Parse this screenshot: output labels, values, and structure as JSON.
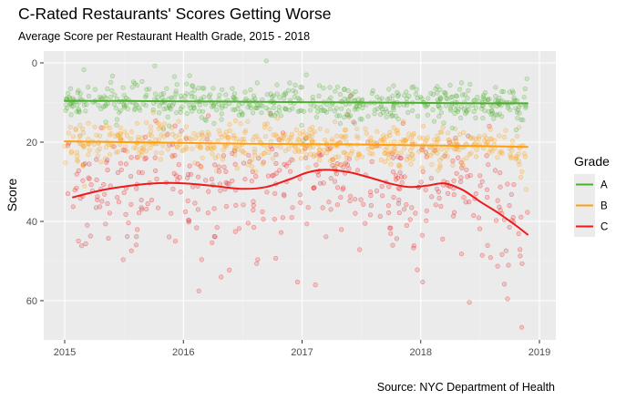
{
  "title": "C-Rated Restaurants' Scores Getting Worse",
  "subtitle": "Average Score per Restaurant Health Grade, 2015 - 2018",
  "caption": "Source: NYC Department of Health",
  "colors": {
    "panel": "#ebebeb",
    "grid_major": "#ffffff",
    "grid_minor": "#f4f4f4",
    "A": "#4daf2f",
    "B": "#ff9f10",
    "C": "#ee1b1b"
  },
  "chart_data": {
    "type": "scatter",
    "xlabel": "",
    "ylabel": "Score",
    "xlim": [
      2014.82,
      2019.13
    ],
    "ylim": [
      0,
      70
    ],
    "y_reversed": true,
    "x_ticks": [
      2015,
      2016,
      2017,
      2018,
      2019
    ],
    "y_ticks": [
      0,
      20,
      40,
      60
    ],
    "grid": true,
    "legend": {
      "title": "Grade",
      "position": "right",
      "entries": [
        "A",
        "B",
        "C"
      ]
    },
    "x_range": [
      2015.0,
      2018.9
    ],
    "series": [
      {
        "name": "A",
        "points_description": "daily restaurant scores, dense band",
        "scatter_center": 10,
        "scatter_spread": 3.5,
        "scatter_count": 560,
        "trend": [
          [
            2015.0,
            9.6
          ],
          [
            2015.5,
            9.6
          ],
          [
            2016.0,
            9.7
          ],
          [
            2016.5,
            9.8
          ],
          [
            2017.0,
            9.9
          ],
          [
            2017.5,
            10.0
          ],
          [
            2018.0,
            10.1
          ],
          [
            2018.5,
            10.2
          ],
          [
            2018.9,
            10.2
          ]
        ]
      },
      {
        "name": "B",
        "points_description": "daily restaurant scores, band",
        "scatter_center": 20,
        "scatter_spread": 4,
        "scatter_count": 560,
        "trend": [
          [
            2015.0,
            19.8
          ],
          [
            2015.5,
            20.0
          ],
          [
            2016.0,
            20.2
          ],
          [
            2016.5,
            20.4
          ],
          [
            2017.0,
            20.5
          ],
          [
            2017.5,
            20.6
          ],
          [
            2018.0,
            20.8
          ],
          [
            2018.5,
            21.0
          ],
          [
            2018.9,
            21.2
          ]
        ]
      },
      {
        "name": "C",
        "points_description": "daily restaurant scores, wide spread",
        "scatter_center": 32,
        "scatter_spread": 12,
        "scatter_count": 420,
        "trend": [
          [
            2015.07,
            33.9
          ],
          [
            2015.3,
            32.2
          ],
          [
            2015.5,
            31.2
          ],
          [
            2015.7,
            30.5
          ],
          [
            2015.9,
            30.3
          ],
          [
            2016.1,
            30.6
          ],
          [
            2016.3,
            31.2
          ],
          [
            2016.5,
            31.8
          ],
          [
            2016.7,
            31.3
          ],
          [
            2016.9,
            29.3
          ],
          [
            2017.05,
            27.6
          ],
          [
            2017.2,
            27.0
          ],
          [
            2017.4,
            27.6
          ],
          [
            2017.6,
            29.2
          ],
          [
            2017.75,
            30.5
          ],
          [
            2017.9,
            31.3
          ],
          [
            2018.05,
            31.0
          ],
          [
            2018.2,
            30.4
          ],
          [
            2018.35,
            32.0
          ],
          [
            2018.5,
            35.0
          ],
          [
            2018.65,
            37.8
          ],
          [
            2018.8,
            41.0
          ],
          [
            2018.9,
            43.3
          ]
        ]
      }
    ]
  }
}
